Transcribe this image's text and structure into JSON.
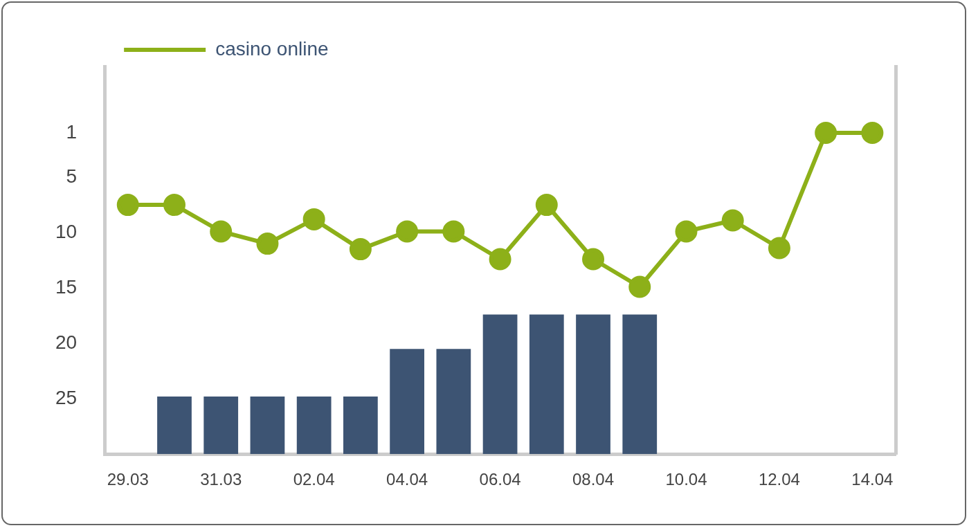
{
  "chart_data": {
    "type": "line",
    "categories": [
      "29.03",
      null,
      "31.03",
      null,
      "02.04",
      null,
      "04.04",
      null,
      "06.04",
      null,
      "08.04",
      null,
      "10.04",
      null,
      "12.04",
      null,
      "14.04"
    ],
    "series": [
      {
        "type": "bar",
        "color": "#3d5473",
        "base": [
          null,
          30,
          30,
          30,
          30,
          30,
          30,
          30,
          30,
          30,
          30,
          30,
          null,
          null,
          null,
          null,
          null
        ],
        "values": [
          null,
          -5.2,
          -5.2,
          -5.2,
          -5.2,
          -5.2,
          -9.5,
          -9.5,
          -12.6,
          -12.6,
          -12.6,
          -12.6,
          null,
          null,
          null,
          null,
          null
        ]
      },
      {
        "name": "casino online",
        "color": "#8db019",
        "values": [
          7.5,
          7.5,
          9.9,
          11,
          8.8,
          11.5,
          9.9,
          9.9,
          12.4,
          7.5,
          12.4,
          14.9,
          9.9,
          8.9,
          11.4,
          1,
          1
        ]
      }
    ],
    "ylim": [
      30,
      -5
    ],
    "yticks": [
      1,
      5,
      10,
      15,
      20,
      25
    ],
    "grid": false,
    "legend": "top left",
    "marker": "circle",
    "line_style": "solid"
  }
}
